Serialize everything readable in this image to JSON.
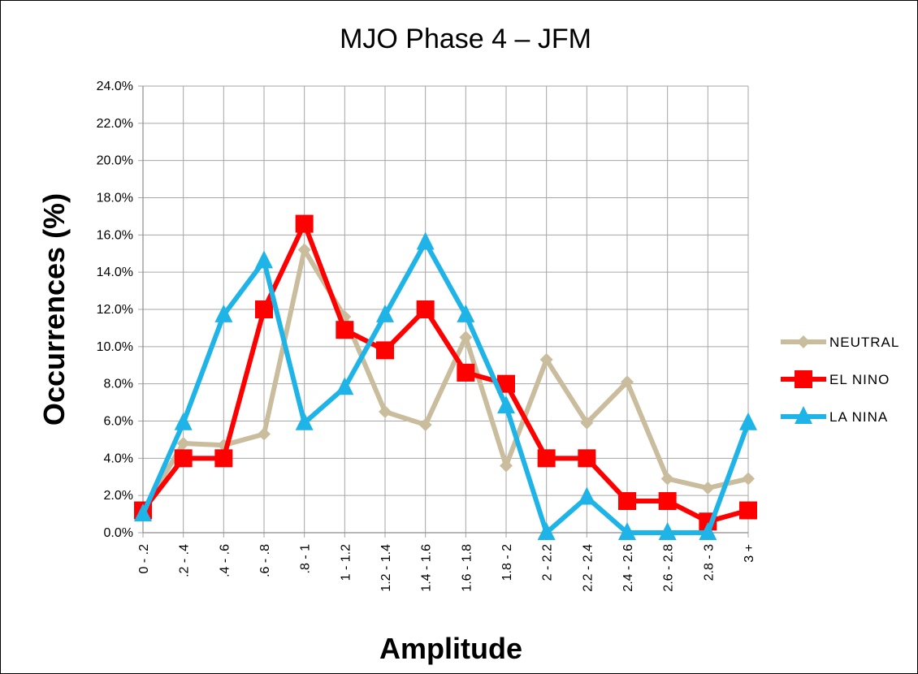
{
  "chart_data": {
    "type": "line",
    "title": "MJO Phase 4 – JFM",
    "xlabel": "Amplitude",
    "ylabel": "Occurrences (%)",
    "categories": [
      "0 - .2",
      ".2 - .4",
      ".4 - .6",
      ".6 - .8",
      ".8 - 1",
      "1 - 1.2",
      "1.2 - 1.4",
      "1.4 - 1.6",
      "1.6 - 1.8",
      "1.8 - 2",
      "2 - 2.2",
      "2.2 - 2.4",
      "2.4 - 2.6",
      "2.6 - 2.8",
      "2.8 - 3",
      "3 +"
    ],
    "ylim": [
      0,
      24
    ],
    "yticks": [
      "0.0%",
      "2.0%",
      "4.0%",
      "6.0%",
      "8.0%",
      "10.0%",
      "12.0%",
      "14.0%",
      "16.0%",
      "18.0%",
      "20.0%",
      "22.0%",
      "24.0%"
    ],
    "grid": true,
    "legend_position": "right",
    "series": [
      {
        "name": "NEUTRAL",
        "color": "#c9bd9e",
        "marker": "diamond",
        "values": [
          1.2,
          4.8,
          4.7,
          5.3,
          15.2,
          11.6,
          6.5,
          5.8,
          10.5,
          3.6,
          9.3,
          5.9,
          8.1,
          2.9,
          2.4,
          2.9
        ]
      },
      {
        "name": "EL NINO",
        "color": "#ff0000",
        "marker": "square",
        "values": [
          1.2,
          4.0,
          4.0,
          12.0,
          16.6,
          10.9,
          9.8,
          12.0,
          8.6,
          8.0,
          4.0,
          4.0,
          1.7,
          1.7,
          0.6,
          1.2
        ]
      },
      {
        "name": "LA NINA",
        "color": "#1fb4e8",
        "marker": "triangle",
        "values": [
          1.0,
          5.9,
          11.7,
          14.6,
          5.9,
          7.8,
          11.7,
          15.6,
          11.7,
          6.8,
          0.0,
          1.9,
          0.0,
          0.0,
          0.0,
          5.9
        ]
      }
    ]
  }
}
